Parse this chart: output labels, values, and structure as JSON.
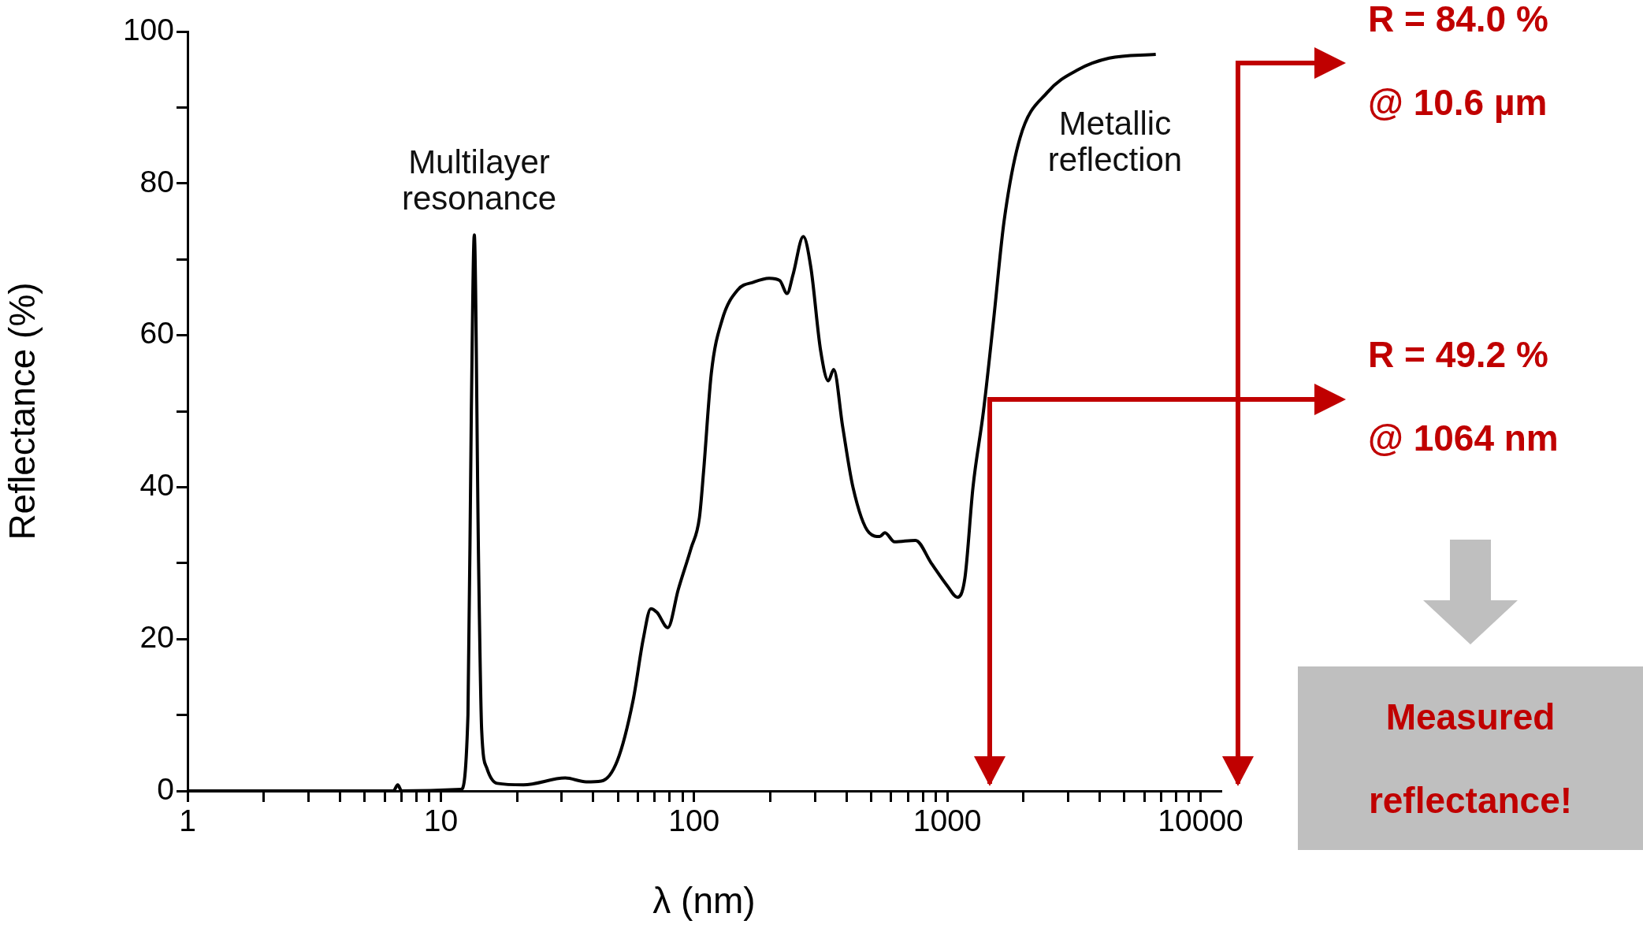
{
  "chart_data": {
    "type": "line",
    "xlabel": "λ (nm)",
    "ylabel": "Reflectance (%)",
    "log": "x",
    "grid": false,
    "legend": false,
    "marker": "none",
    "line_style": "solid",
    "xlim": [
      1,
      12000
    ],
    "xticks": [
      1,
      {
        "value": 2,
        "label": null
      },
      {
        "value": 3,
        "label": null
      },
      {
        "value": 4,
        "label": null
      },
      {
        "value": 5,
        "label": null
      },
      {
        "value": 6,
        "label": null
      },
      {
        "value": 7,
        "label": null
      },
      {
        "value": 8,
        "label": null
      },
      {
        "value": 9,
        "label": null
      },
      10,
      {
        "value": 20,
        "label": null
      },
      {
        "value": 30,
        "label": null
      },
      {
        "value": 40,
        "label": null
      },
      {
        "value": 50,
        "label": null
      },
      {
        "value": 60,
        "label": null
      },
      {
        "value": 70,
        "label": null
      },
      {
        "value": 80,
        "label": null
      },
      {
        "value": 90,
        "label": null
      },
      100,
      {
        "value": 200,
        "label": null
      },
      {
        "value": 300,
        "label": null
      },
      {
        "value": 400,
        "label": null
      },
      {
        "value": 500,
        "label": null
      },
      {
        "value": 600,
        "label": null
      },
      {
        "value": 700,
        "label": null
      },
      {
        "value": 800,
        "label": null
      },
      {
        "value": 900,
        "label": null
      },
      1000,
      {
        "value": 2000,
        "label": null
      },
      {
        "value": 3000,
        "label": null
      },
      {
        "value": 4000,
        "label": null
      },
      {
        "value": 5000,
        "label": null
      },
      {
        "value": 6000,
        "label": null
      },
      {
        "value": 7000,
        "label": null
      },
      {
        "value": 8000,
        "label": null
      },
      {
        "value": 9000,
        "label": null
      },
      10000
    ],
    "ylim": [
      0,
      100
    ],
    "yticks": [
      0,
      {
        "value": 10,
        "label": null
      },
      20,
      {
        "value": 30,
        "label": null
      },
      40,
      {
        "value": 50,
        "label": null
      },
      60,
      {
        "value": 70,
        "label": null
      },
      80,
      {
        "value": 90,
        "label": null
      },
      100
    ],
    "series": [
      {
        "color": "#000000",
        "x": [
          1,
          6.5,
          6.76,
          7,
          12,
          12.8,
          13.2,
          13.56,
          14.1,
          14.5,
          15.2,
          16.7,
          21.2,
          31,
          37.5,
          43,
          49.8,
          57.5,
          63,
          67.5,
          71.4,
          78.8,
          86.6,
          97.4,
          105,
          109,
          117,
          129,
          149,
          172,
          198,
          218,
          233,
          246,
          270,
          289,
          316,
          339,
          356,
          386,
          424,
          491,
          541,
          567,
          619,
          749,
          864,
          1000,
          1096,
          1173,
          1263,
          1389,
          1523,
          1675,
          1937,
          2485,
          3292,
          4359,
          6654
        ],
        "values": [
          0,
          0,
          0.8,
          0,
          0.2,
          10,
          50,
          73.2,
          30,
          8,
          3,
          1,
          0.8,
          1.7,
          1.2,
          1.3,
          4,
          12,
          20,
          24,
          23.5,
          21.5,
          26.5,
          32,
          36,
          42,
          55,
          62,
          66,
          67,
          67.5,
          67.2,
          65.5,
          68,
          73,
          69,
          58,
          54,
          55.5,
          48,
          40,
          34,
          33.5,
          34,
          32.8,
          33,
          30,
          27,
          25.5,
          28,
          40,
          50,
          62,
          75,
          86,
          92,
          95,
          96.5,
          97
        ]
      }
    ],
    "annotations": [
      "Multilayer\nresonance",
      "Metallic\nreflection",
      "R = 84.0 %",
      "@ 10.6 µm",
      "R = 49.2 %",
      "@ 1064 nm",
      "Measured reflectance!"
    ]
  }
}
